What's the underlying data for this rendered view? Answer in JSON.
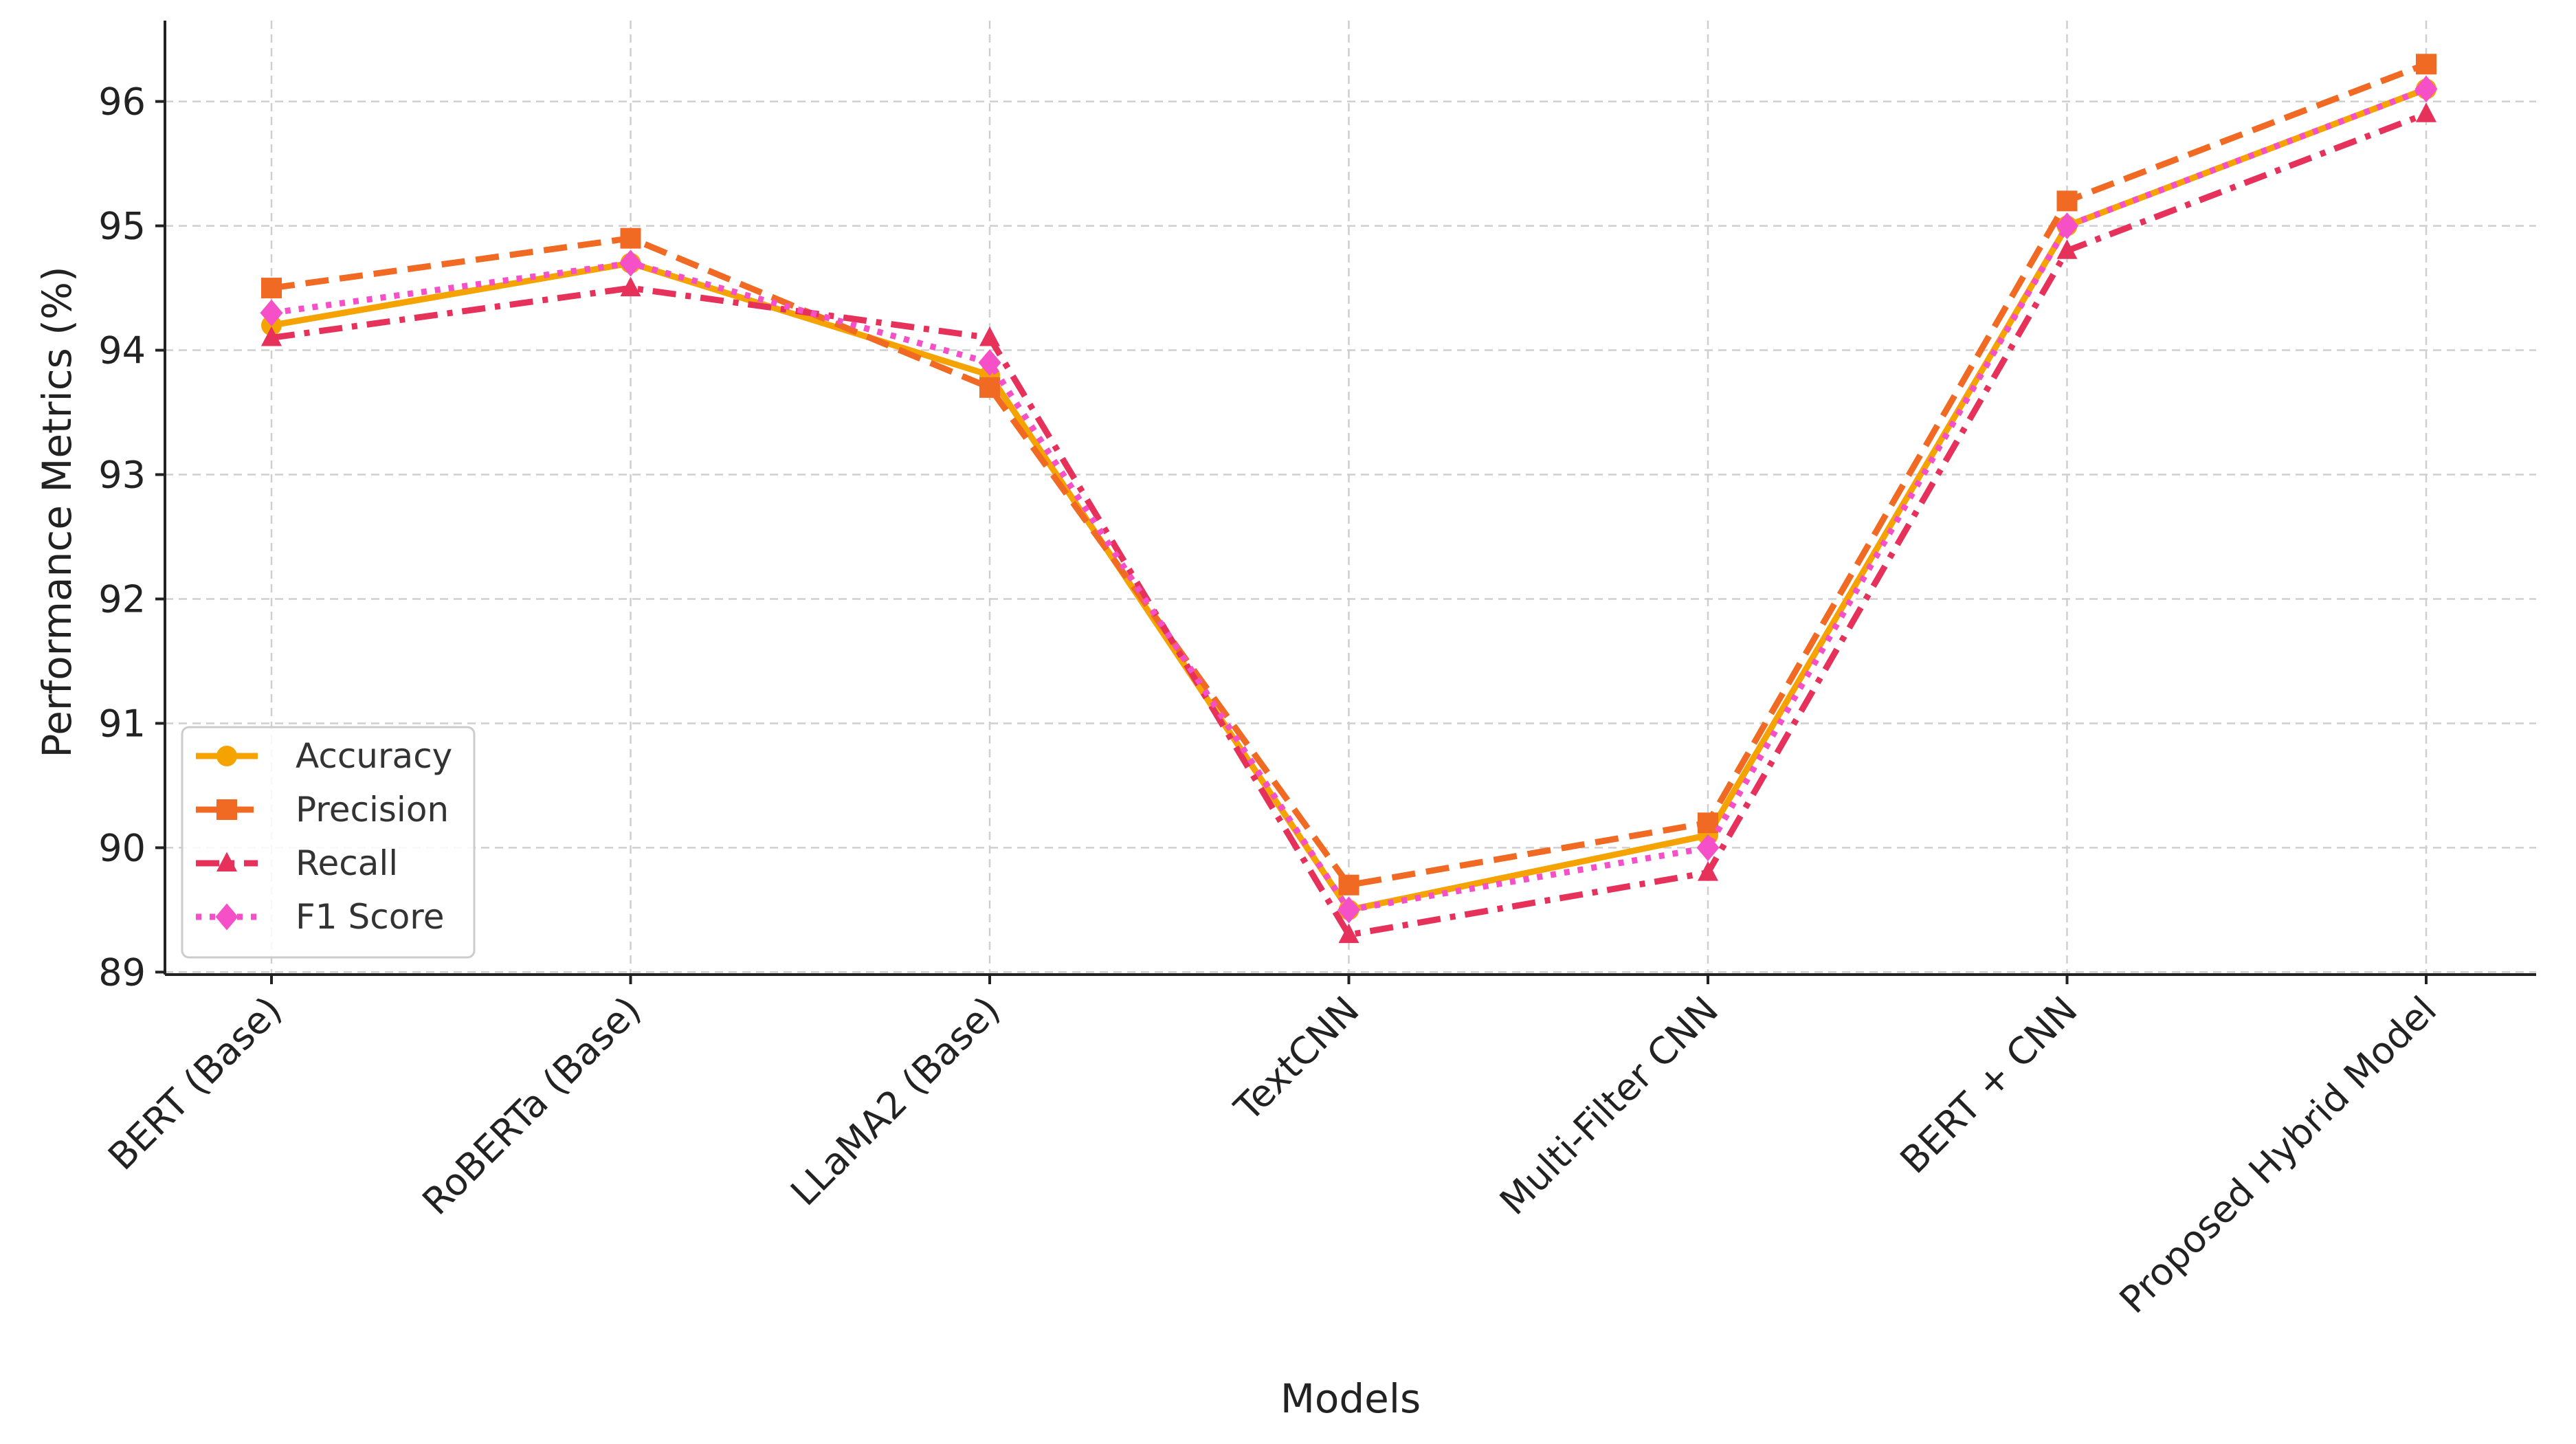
{
  "chart_data": {
    "type": "line",
    "title": "",
    "xlabel": "Models",
    "ylabel": "Performance Metrics (%)",
    "categories": [
      "BERT (Base)",
      "RoBERTa (Base)",
      "LLaMA2 (Base)",
      "TextCNN",
      "Multi-Filter CNN",
      "BERT + CNN",
      "Proposed Hybrid Model"
    ],
    "yticks": [
      "89",
      "90",
      "91",
      "92",
      "93",
      "94",
      "95",
      "96"
    ],
    "ylim": [
      88.98,
      96.65
    ],
    "grid": true,
    "legend_position": "lower-left",
    "series": [
      {
        "name": "Accuracy",
        "values": [
          94.2,
          94.7,
          93.8,
          89.5,
          90.1,
          95.0,
          96.1
        ],
        "color": "#f5a300",
        "dash": "solid",
        "marker": "circle"
      },
      {
        "name": "Precision",
        "values": [
          94.5,
          94.9,
          93.7,
          89.7,
          90.2,
          95.2,
          96.3
        ],
        "color": "#f06a23",
        "dash": "dashed",
        "marker": "square"
      },
      {
        "name": "Recall",
        "values": [
          94.1,
          94.5,
          94.1,
          89.3,
          89.8,
          94.8,
          95.9
        ],
        "color": "#e6315b",
        "dash": "dashdot",
        "marker": "triangle"
      },
      {
        "name": "F1 Score",
        "values": [
          94.3,
          94.7,
          93.9,
          89.5,
          90.0,
          95.0,
          96.1
        ],
        "color": "#f550c8",
        "dash": "dotted",
        "marker": "diamond"
      }
    ]
  }
}
